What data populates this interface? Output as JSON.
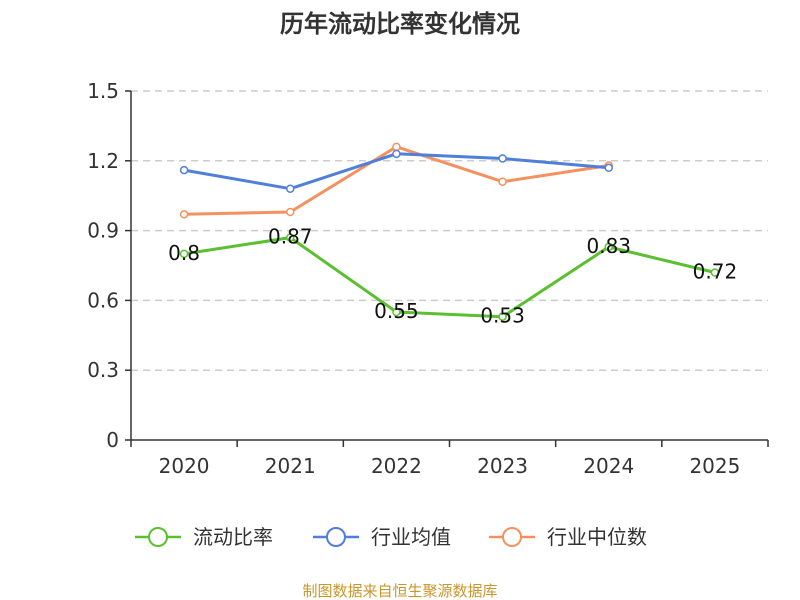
{
  "chart_data": {
    "type": "line",
    "title": "历年流动比率变化情况",
    "categories": [
      "2020",
      "2021",
      "2022",
      "2023",
      "2024",
      "2025"
    ],
    "ylim": [
      0,
      1.5
    ],
    "yticks": [
      "0",
      "0.3",
      "0.6",
      "0.9",
      "1.2",
      "1.5"
    ],
    "grid": true,
    "legend_position": "bottom",
    "series": [
      {
        "name": "流动比率",
        "color": "#5bc02f",
        "values": [
          0.8,
          0.87,
          0.55,
          0.53,
          0.83,
          0.72
        ],
        "labels": [
          "0.8",
          "0.87",
          "0.55",
          "0.53",
          "0.83",
          "0.72"
        ]
      },
      {
        "name": "行业均值",
        "color": "#4f7fd8",
        "values": [
          1.16,
          1.08,
          1.23,
          1.21,
          1.17,
          null
        ]
      },
      {
        "name": "行业中位数",
        "color": "#f5915e",
        "values": [
          0.97,
          0.98,
          1.26,
          1.11,
          1.18,
          null
        ]
      }
    ],
    "source": "制图数据来自恒生聚源数据库",
    "source_color": "#c9962b"
  }
}
